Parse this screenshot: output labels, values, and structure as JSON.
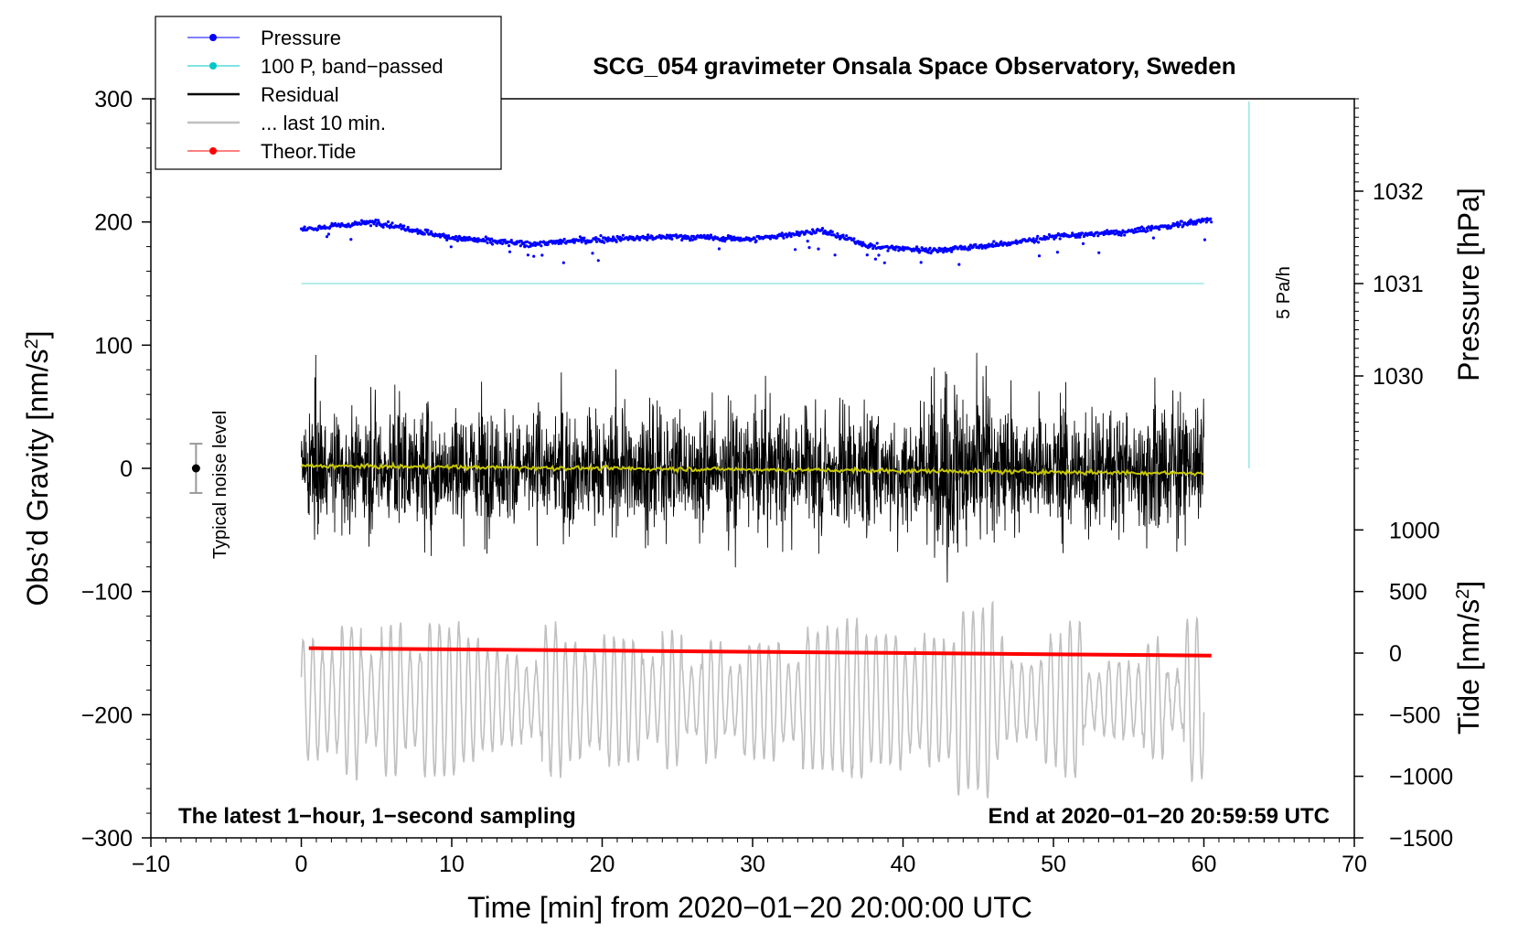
{
  "chart_data": {
    "type": "line",
    "title": "SCG_054 gravimeter Onsala Space Observatory, Sweden",
    "xlabel": "Time [min] from 2020−01−20 20:00:00 UTC",
    "ylabel_left_main": "Obs’d Gravity [nm/s",
    "ylabel_left_sup": "2",
    "ylabel_left_end": "]",
    "ylabel_right_pressure": "Pressure [hPa]",
    "ylabel_right_tide_main": "Tide [nm/s",
    "ylabel_right_tide_sup": "2",
    "ylabel_right_tide_end": "]",
    "xlim": [
      -10,
      70
    ],
    "ylim": [
      -300,
      300
    ],
    "x_ticks": [
      -10,
      0,
      10,
      20,
      30,
      40,
      50,
      60,
      70
    ],
    "x_tick_labels": [
      "−10",
      "0",
      "10",
      "20",
      "30",
      "40",
      "50",
      "60",
      "70"
    ],
    "y_ticks": [
      -300,
      -200,
      -100,
      0,
      100,
      200,
      300
    ],
    "y_tick_labels": [
      "−300",
      "−200",
      "−100",
      "0",
      "100",
      "200",
      "300"
    ],
    "pressure_axis": {
      "ticks": [
        1030,
        1031,
        1032
      ],
      "tick_labels": [
        "1030",
        "1031",
        "1032"
      ],
      "gravity_at_ticks": [
        75,
        150,
        225
      ]
    },
    "tide_axis": {
      "ticks": [
        -1500,
        -1000,
        -500,
        0,
        500,
        1000
      ],
      "tick_labels": [
        "−1500",
        "−1000",
        "−500",
        "0",
        "500",
        "1000"
      ],
      "gravity_per_unit": 0.1,
      "gravity_offset": -150
    },
    "legend": {
      "placement": "top-left",
      "entries": [
        {
          "label": "Pressure",
          "color": "#0000ff",
          "marker": true
        },
        {
          "label": "100 P, band−passed",
          "color": "#00c8c8",
          "marker": true
        },
        {
          "label": "Residual",
          "color": "#000000",
          "marker": false
        },
        {
          "label": "... last 10 min.",
          "color": "#c0c0c0",
          "marker": false
        },
        {
          "label": "Theor.Tide",
          "color": "#ff0000",
          "marker": true
        }
      ]
    },
    "series": [
      {
        "name": "Pressure",
        "color": "#0000ff",
        "x": [
          0,
          5,
          10,
          15,
          20,
          25,
          30,
          34.5,
          38,
          42,
          46,
          50,
          55,
          60.5
        ],
        "values": [
          194,
          200,
          187,
          182,
          186,
          188,
          186,
          193,
          180,
          177,
          181,
          188,
          192,
          202
        ]
      },
      {
        "name": "100 P, band−passed",
        "color": "#9de6e6",
        "x": [
          0,
          60
        ],
        "values": [
          150,
          150
        ]
      },
      {
        "name": "Residual",
        "color": "#000000",
        "x": [
          0,
          60
        ],
        "amplitude_typical": 40,
        "peak_max": 119,
        "peak_min": -117
      },
      {
        "name": "Residual smoothed",
        "color": "#c8c800",
        "x": [
          0,
          60
        ],
        "values": [
          2,
          -4
        ]
      },
      {
        "name": "... last 10 min.",
        "color": "#c0c0c0",
        "x": [
          0,
          60
        ],
        "center": -188,
        "amplitude_typical": 40,
        "peak_max": -90,
        "peak_min": -270
      },
      {
        "name": "Theor.Tide",
        "color": "#ff0000",
        "x": [
          0.5,
          60.5
        ],
        "values": [
          -146,
          -152
        ]
      }
    ],
    "scale_bar": {
      "label": "5 Pa/h",
      "x": 63,
      "y_from": 0,
      "y_to": 300,
      "color": "#9de6e6"
    },
    "noise_marker": {
      "label": "Typical noise level",
      "x": -7,
      "value": 0,
      "range": [
        -20,
        20
      ]
    },
    "annotations": {
      "bottom_left": "The latest 1−hour, 1−second sampling",
      "bottom_right": "End at 2020−01−20 20:59:59 UTC"
    }
  }
}
